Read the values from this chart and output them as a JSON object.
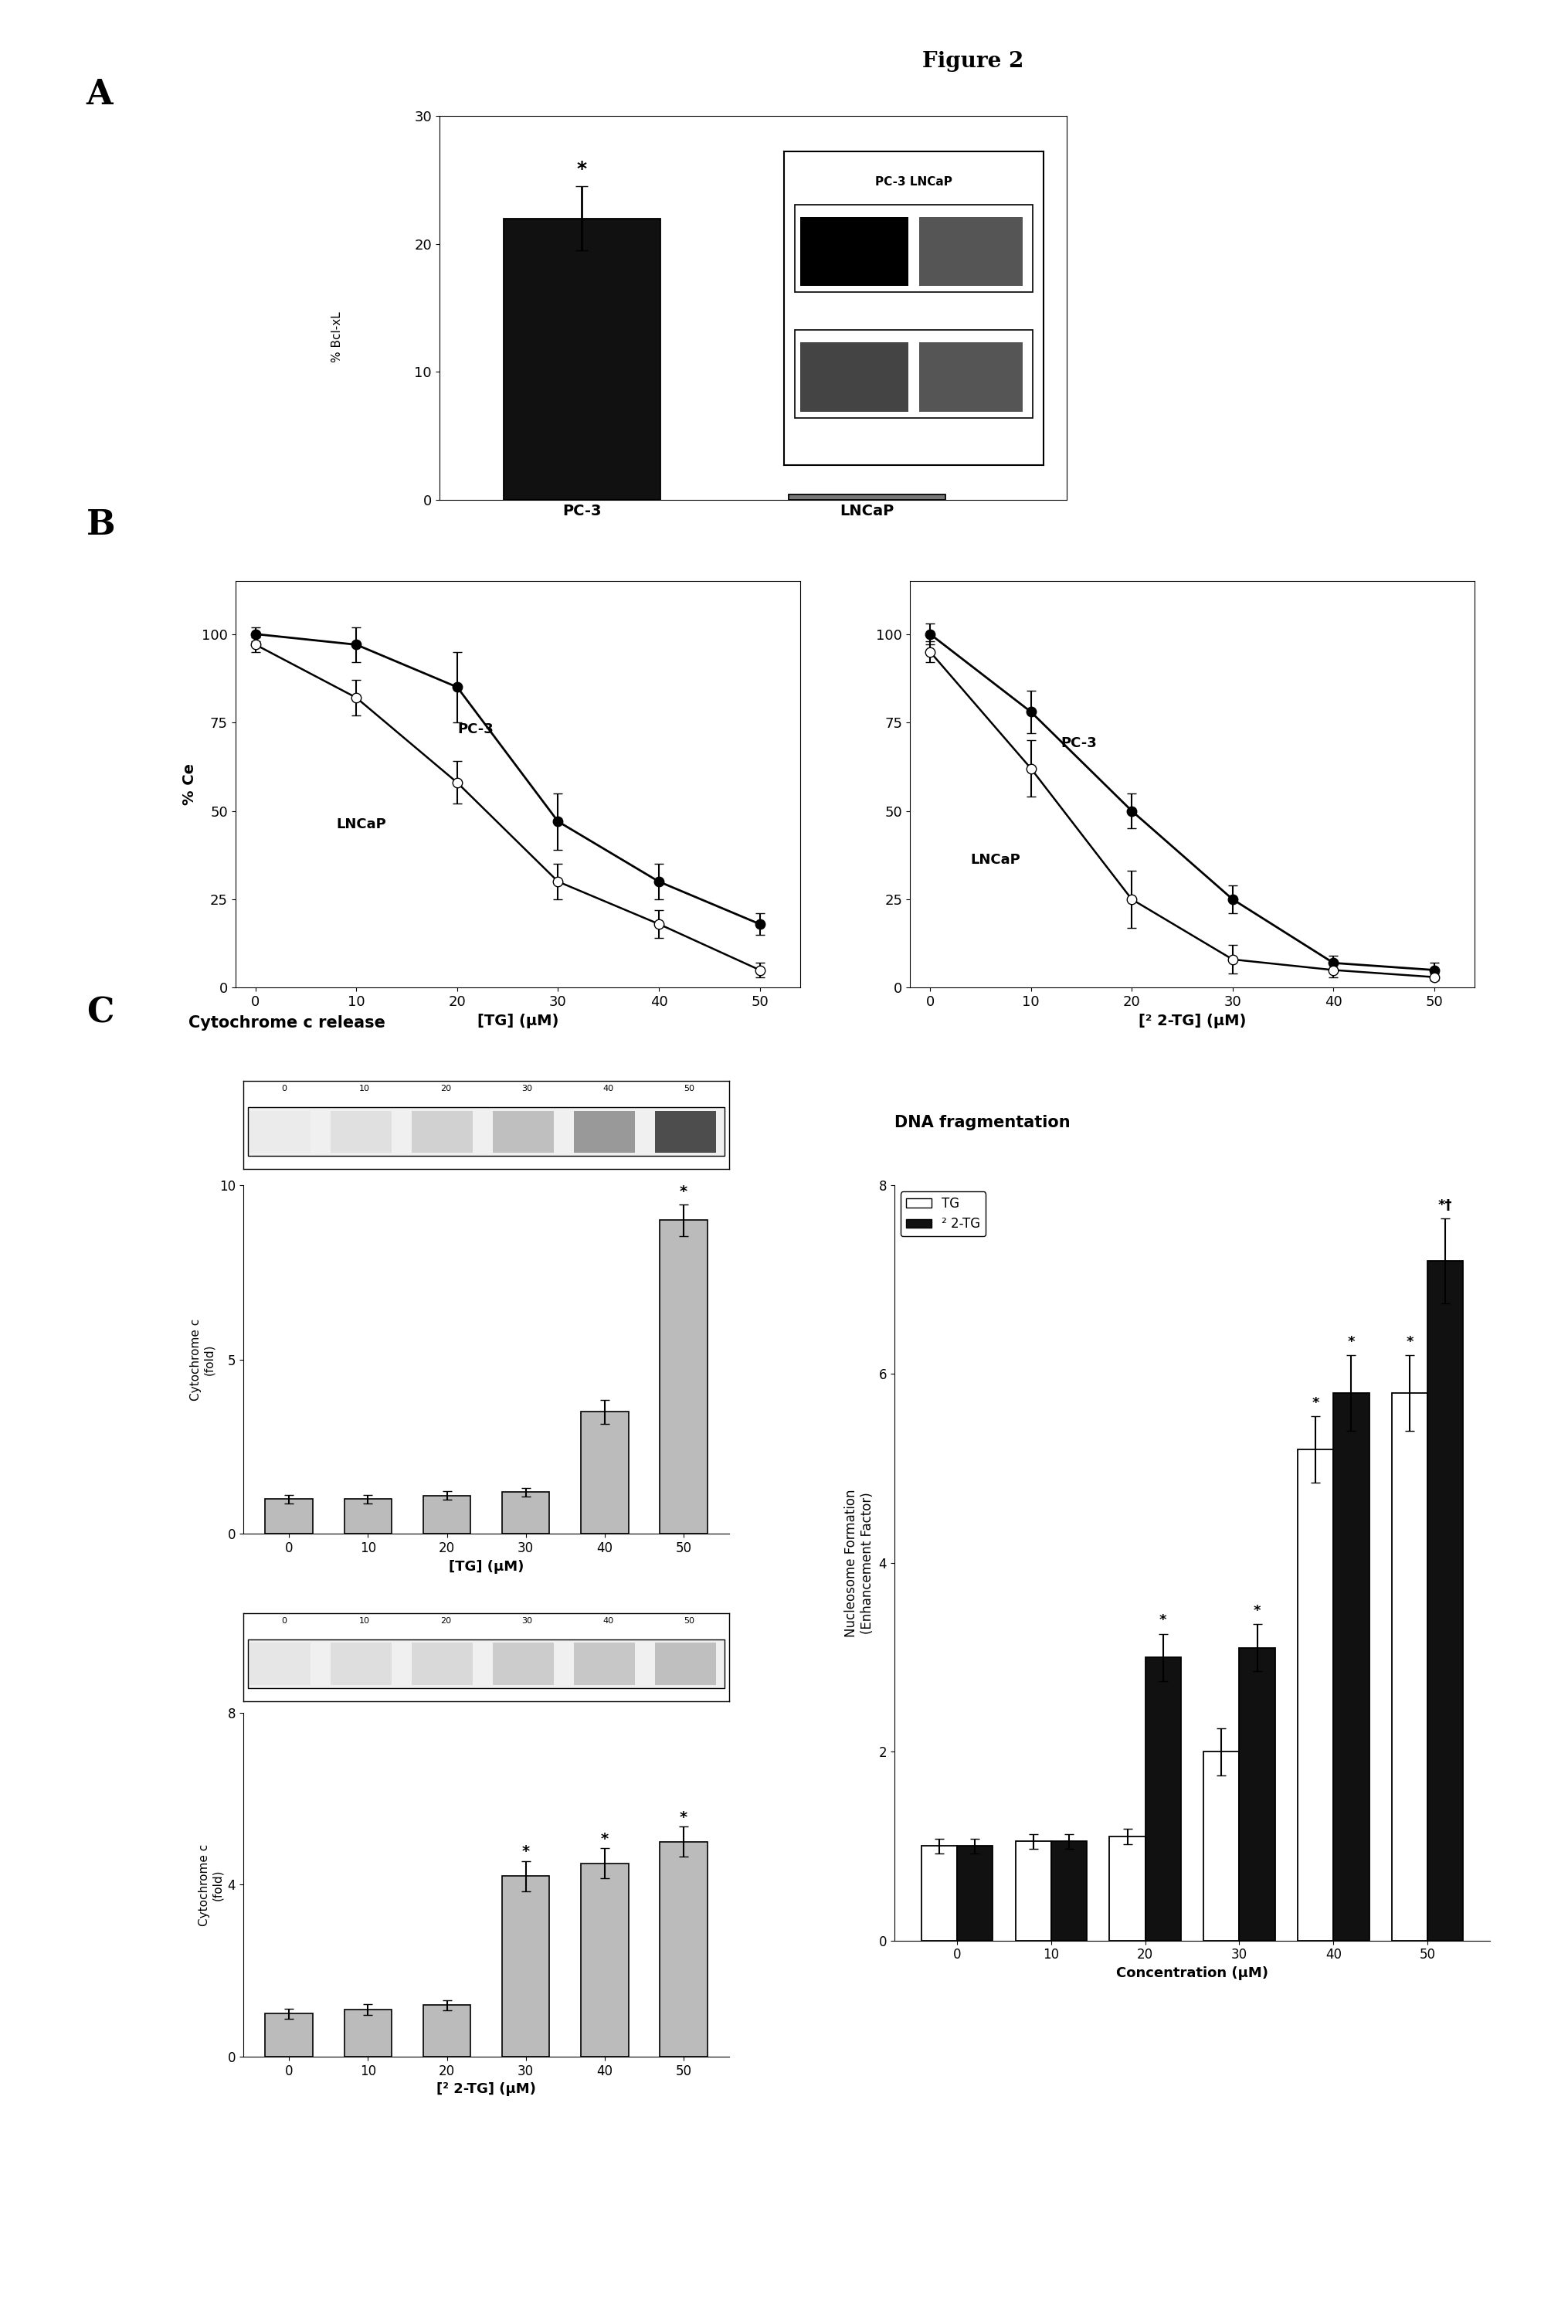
{
  "title": "Figure 2",
  "panel_A": {
    "bars": [
      {
        "label": "PC-3",
        "value": 22,
        "color": "#111111"
      },
      {
        "label": "LNCaP",
        "value": 0.4,
        "color": "#777777"
      }
    ],
    "ylim": [
      0,
      30
    ],
    "yticks": [
      0,
      10,
      20,
      30
    ],
    "error_pc3": 2.5,
    "star_label": "*",
    "ylabel": "% Bcl-xL",
    "inset_label": "PC-3 LNCaP"
  },
  "panel_B_left": {
    "x": [
      0,
      10,
      20,
      30,
      40,
      50
    ],
    "pc3": [
      100,
      97,
      85,
      47,
      30,
      18
    ],
    "lncap": [
      97,
      82,
      58,
      30,
      18,
      5
    ],
    "pc3_err": [
      2,
      5,
      10,
      8,
      5,
      3
    ],
    "lncap_err": [
      2,
      5,
      6,
      5,
      4,
      2
    ],
    "xlabel": "[TG] (μM)",
    "ylabel": "% Ce",
    "ylim": [
      0,
      115
    ],
    "yticks": [
      0,
      25,
      50,
      75,
      100
    ],
    "label_pc3": "PC-3",
    "label_lncap": "LNCaP"
  },
  "panel_B_right": {
    "x": [
      0,
      10,
      20,
      30,
      40,
      50
    ],
    "pc3": [
      100,
      78,
      50,
      25,
      7,
      5
    ],
    "lncap": [
      95,
      62,
      25,
      8,
      5,
      3
    ],
    "pc3_err": [
      3,
      6,
      5,
      4,
      2,
      2
    ],
    "lncap_err": [
      3,
      8,
      8,
      4,
      2,
      1
    ],
    "xlabel": "[² 2-TG] (μM)",
    "ylabel": "",
    "ylim": [
      0,
      115
    ],
    "yticks": [
      0,
      25,
      50,
      75,
      100
    ],
    "label_pc3": "PC-3",
    "label_lncap": "LNCaP"
  },
  "panel_C_left_top": {
    "x": [
      0,
      10,
      20,
      30,
      40,
      50
    ],
    "values": [
      1.0,
      1.0,
      1.1,
      1.2,
      3.5,
      9.0
    ],
    "errors": [
      0.12,
      0.12,
      0.12,
      0.12,
      0.35,
      0.45
    ],
    "color": "#bbbbbb",
    "ylim": [
      0,
      10
    ],
    "yticks": [
      0,
      5,
      10
    ],
    "xlabel": "[TG] (μM)",
    "ylabel": "Cytochrome c\n(fold)",
    "inset_labels": [
      "0",
      "10",
      "20",
      "30",
      "40",
      "50"
    ],
    "star_indices": [
      5
    ]
  },
  "panel_C_left_bottom": {
    "x": [
      0,
      10,
      20,
      30,
      40,
      50
    ],
    "values": [
      1.0,
      1.1,
      1.2,
      4.2,
      4.5,
      5.0
    ],
    "errors": [
      0.12,
      0.12,
      0.12,
      0.35,
      0.35,
      0.35
    ],
    "color": "#bbbbbb",
    "ylim": [
      0,
      8
    ],
    "yticks": [
      0,
      4,
      8
    ],
    "xlabel": "[² 2-TG] (μM)",
    "ylabel": "Cytochrome c\n(fold)",
    "inset_labels": [
      "0",
      "10",
      "20",
      "30",
      "40",
      "50"
    ],
    "star_indices": [
      3,
      4,
      5
    ]
  },
  "panel_C_right": {
    "x": [
      0,
      10,
      20,
      30,
      40,
      50
    ],
    "tg_values": [
      1.0,
      1.05,
      1.1,
      2.0,
      5.2,
      5.8
    ],
    "tg_errors": [
      0.08,
      0.08,
      0.08,
      0.25,
      0.35,
      0.4
    ],
    "tg2_values": [
      1.0,
      1.05,
      3.0,
      3.1,
      5.8,
      7.2
    ],
    "tg2_errors": [
      0.08,
      0.08,
      0.25,
      0.25,
      0.4,
      0.45
    ],
    "ylim": [
      0,
      8
    ],
    "yticks": [
      0,
      2,
      4,
      6,
      8
    ],
    "xlabel": "Concentration (μM)",
    "ylabel": "Nucleosome Formation\n(Enhancement Factor)",
    "tg_color": "#ffffff",
    "tg2_color": "#111111",
    "title": "DNA fragmentation",
    "star_tg": [
      4,
      5
    ],
    "star_tg2": [
      2,
      3,
      4,
      5
    ],
    "dagger_idx": 5,
    "legend_tg": "TG",
    "legend_tg2": "² 2-TG"
  }
}
